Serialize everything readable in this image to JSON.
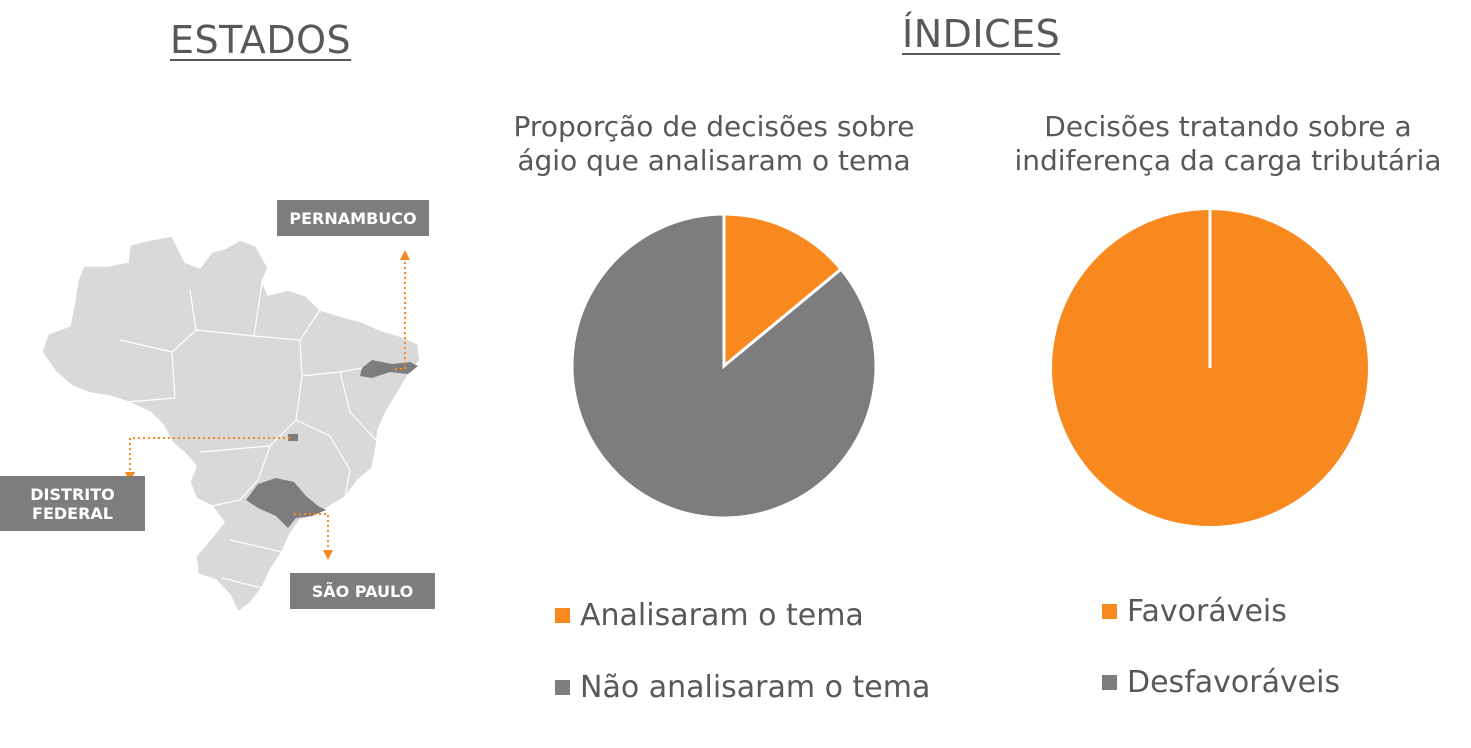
{
  "headings": {
    "left": "ESTADOS",
    "right": "ÍNDICES"
  },
  "map": {
    "states": [
      {
        "label": "PERNAMBUCO"
      },
      {
        "label": "DISTRITO FEDERAL"
      },
      {
        "label": "SÃO PAULO"
      }
    ],
    "colors": {
      "land": "#d9d9d9",
      "border": "#ffffff",
      "highlight": "#7d7d7f",
      "connector": "#f7891f"
    }
  },
  "chart_data": [
    {
      "type": "pie",
      "title": "Proporção de decisões sobre\nágio que analisaram o tema",
      "categories": [
        "Analisaram o tema",
        "Não analisaram o tema"
      ],
      "values": [
        14,
        86
      ],
      "colors": [
        "#f7891f",
        "#7d7d7f"
      ],
      "legend_position": "bottom"
    },
    {
      "type": "pie",
      "title": "Decisões tratando sobre a\nindiferença da carga tributária",
      "categories": [
        "Favoráveis",
        "Desfavoráveis"
      ],
      "values": [
        100,
        0
      ],
      "colors": [
        "#f7891f",
        "#7d7d7f"
      ],
      "legend_position": "bottom"
    }
  ]
}
